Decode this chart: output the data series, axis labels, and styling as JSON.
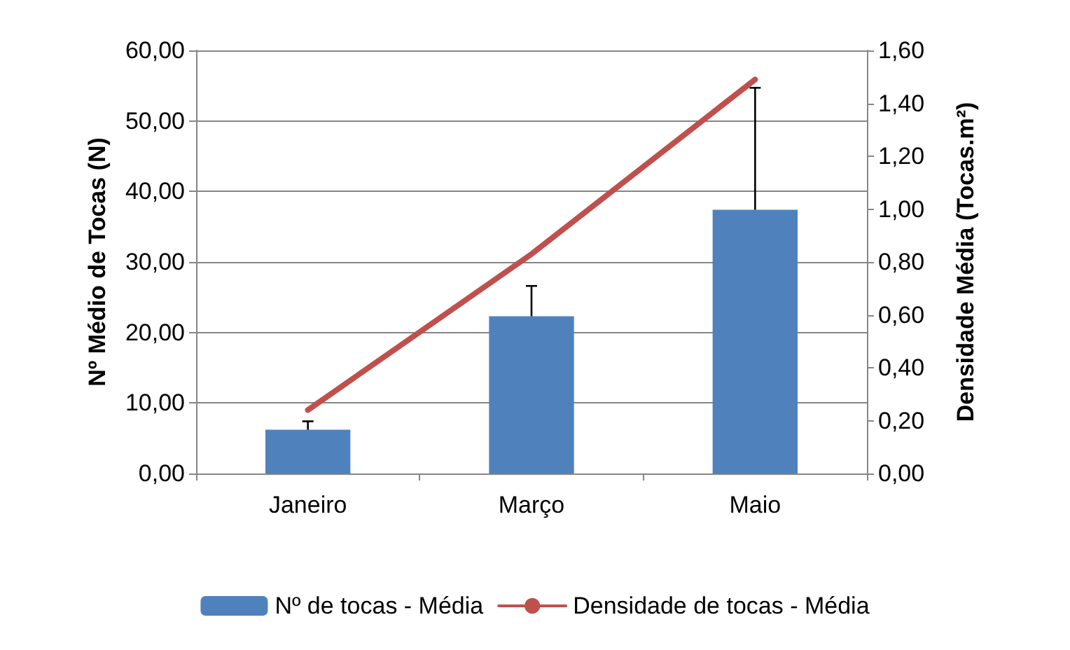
{
  "chart_data": {
    "type": "bar",
    "categories": [
      "Janeiro",
      "Março",
      "Maio"
    ],
    "ylabel": "Nº Médio de Tocas (N)",
    "y2label": "Densidade Média (Tocas.m²)",
    "series": [
      {
        "name": "Nº de tocas - Média",
        "color": "#4f81bd",
        "values": [
          6.2,
          22.3,
          37.4
        ],
        "errors": [
          [
            6.2,
            7.4
          ],
          [
            22.3,
            26.6
          ],
          [
            37.4,
            54.7
          ]
        ]
      },
      {
        "name": "Densidade de tocas - Média",
        "type": "line",
        "axis": "y2",
        "color": "#c0504d",
        "values": [
          0.24,
          0.83,
          1.49
        ],
        "marker": "none",
        "line_style": "solid"
      }
    ],
    "ylim": [
      0,
      60
    ],
    "yticks": [
      {
        "value": 0,
        "label": "0,00"
      },
      {
        "value": 10,
        "label": "10,00"
      },
      {
        "value": 20,
        "label": "20,00"
      },
      {
        "value": 30,
        "label": "30,00"
      },
      {
        "value": 40,
        "label": "40,00"
      },
      {
        "value": 50,
        "label": "50,00"
      },
      {
        "value": 60,
        "label": "60,00"
      }
    ],
    "y2lim": [
      0,
      1.6
    ],
    "y2ticks": [
      {
        "value": 0,
        "label": "0,00"
      },
      {
        "value": 0.2,
        "label": "0,20"
      },
      {
        "value": 0.4,
        "label": "0,40"
      },
      {
        "value": 0.6,
        "label": "0,60"
      },
      {
        "value": 0.8,
        "label": "0,80"
      },
      {
        "value": 1,
        "label": "1,00"
      },
      {
        "value": 1.2,
        "label": "1,20"
      },
      {
        "value": 1.4,
        "label": "1,40"
      },
      {
        "value": 1.6,
        "label": "1,60"
      }
    ],
    "grid": "y",
    "legend": "bottom"
  }
}
